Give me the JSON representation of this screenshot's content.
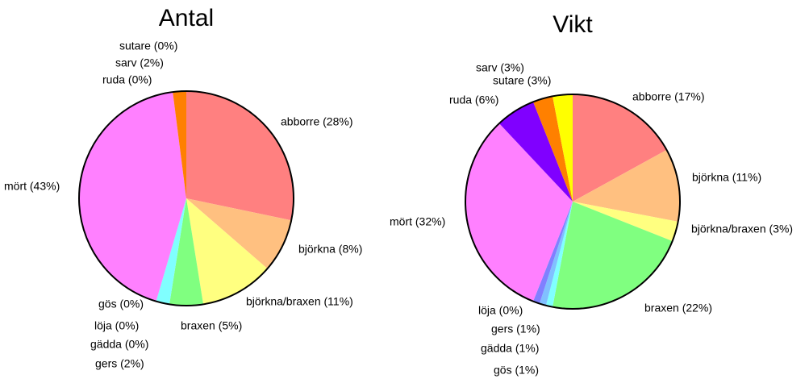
{
  "chart_data": [
    {
      "type": "pie",
      "title": "Antal",
      "categories": [
        "abborre (28%)",
        "björkna (8%)",
        "björkna/braxen (11%)",
        "braxen (5%)",
        "gers (2%)",
        "gädda (0%)",
        "löja (0%)",
        "gös (0%)",
        "mört (43%)",
        "ruda (0%)",
        "sarv (2%)",
        "sutare (0%)"
      ],
      "values": [
        28,
        8,
        11,
        5,
        2,
        0,
        0,
        0,
        43,
        0,
        2,
        0
      ],
      "colors": [
        "#ff8080",
        "#ffc080",
        "#ffff80",
        "#80ff80",
        "#80ffff",
        "#80c0ff",
        "#c080ff",
        "#8080ff",
        "#ff80ff",
        "#8000ff",
        "#ff8000",
        "#ffff00"
      ]
    },
    {
      "type": "pie",
      "title": "Vikt",
      "categories": [
        "abborre (17%)",
        "björkna (11%)",
        "björkna/braxen (3%)",
        "braxen (22%)",
        "gers (1%)",
        "gädda (1%)",
        "löja (0%)",
        "gös (1%)",
        "mört (32%)",
        "ruda (6%)",
        "sarv (3%)",
        "sutare (3%)"
      ],
      "values": [
        17,
        11,
        3,
        22,
        1,
        1,
        0,
        1,
        32,
        6,
        3,
        3
      ],
      "colors": [
        "#ff8080",
        "#ffc080",
        "#ffff80",
        "#80ff80",
        "#80ffff",
        "#80c0ff",
        "#c080ff",
        "#8080ff",
        "#ff80ff",
        "#8000ff",
        "#ff8000",
        "#ffff00"
      ]
    }
  ]
}
